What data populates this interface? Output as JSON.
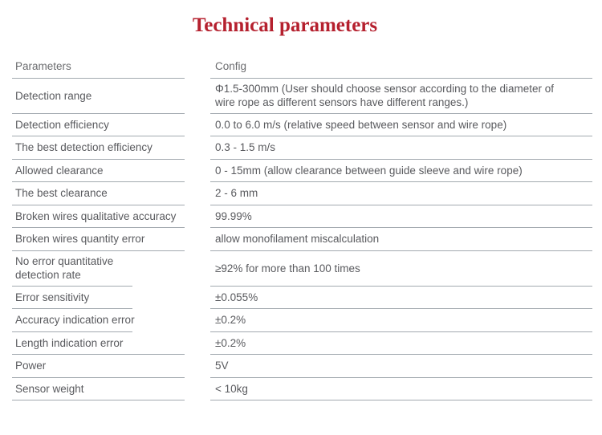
{
  "title": "Technical parameters",
  "table": {
    "header": {
      "param": "Parameters",
      "config": "Config"
    },
    "rows": [
      {
        "param": "Detection range",
        "config": "Φ1.5-300mm (User should choose sensor according to the diameter of\nwire rope as different sensors have different ranges.)"
      },
      {
        "param": "Detection efficiency",
        "config": "0.0 to 6.0 m/s (relative speed between sensor and wire rope)"
      },
      {
        "param": "The best detection efficiency",
        "config": "0.3 - 1.5 m/s"
      },
      {
        "param": "Allowed clearance",
        "config": "0 - 15mm (allow clearance between guide sleeve and wire rope)"
      },
      {
        "param": "The best clearance",
        "config": "2 - 6 mm"
      },
      {
        "param": "Broken wires qualitative accuracy",
        "config": "99.99%"
      },
      {
        "param": "Broken wires quantity error",
        "config": "allow monofilament miscalculation"
      },
      {
        "param": "No error quantitative\ndetection rate",
        "config": "≥92% for more than 100 times"
      },
      {
        "param": "Error sensitivity",
        "config": "±0.055%"
      },
      {
        "param": "Accuracy indication error",
        "config": "±0.2%"
      },
      {
        "param": "Length indication error",
        "config": "±0.2%"
      },
      {
        "param": "Power",
        "config": "5V"
      },
      {
        "param": "Sensor weight",
        "config": "< 10kg"
      }
    ]
  },
  "colors": {
    "title_red": "#b5202e",
    "body_text": "#595a5e",
    "header_text": "#6a6b6e",
    "rule_gray": "#a2a9af"
  }
}
